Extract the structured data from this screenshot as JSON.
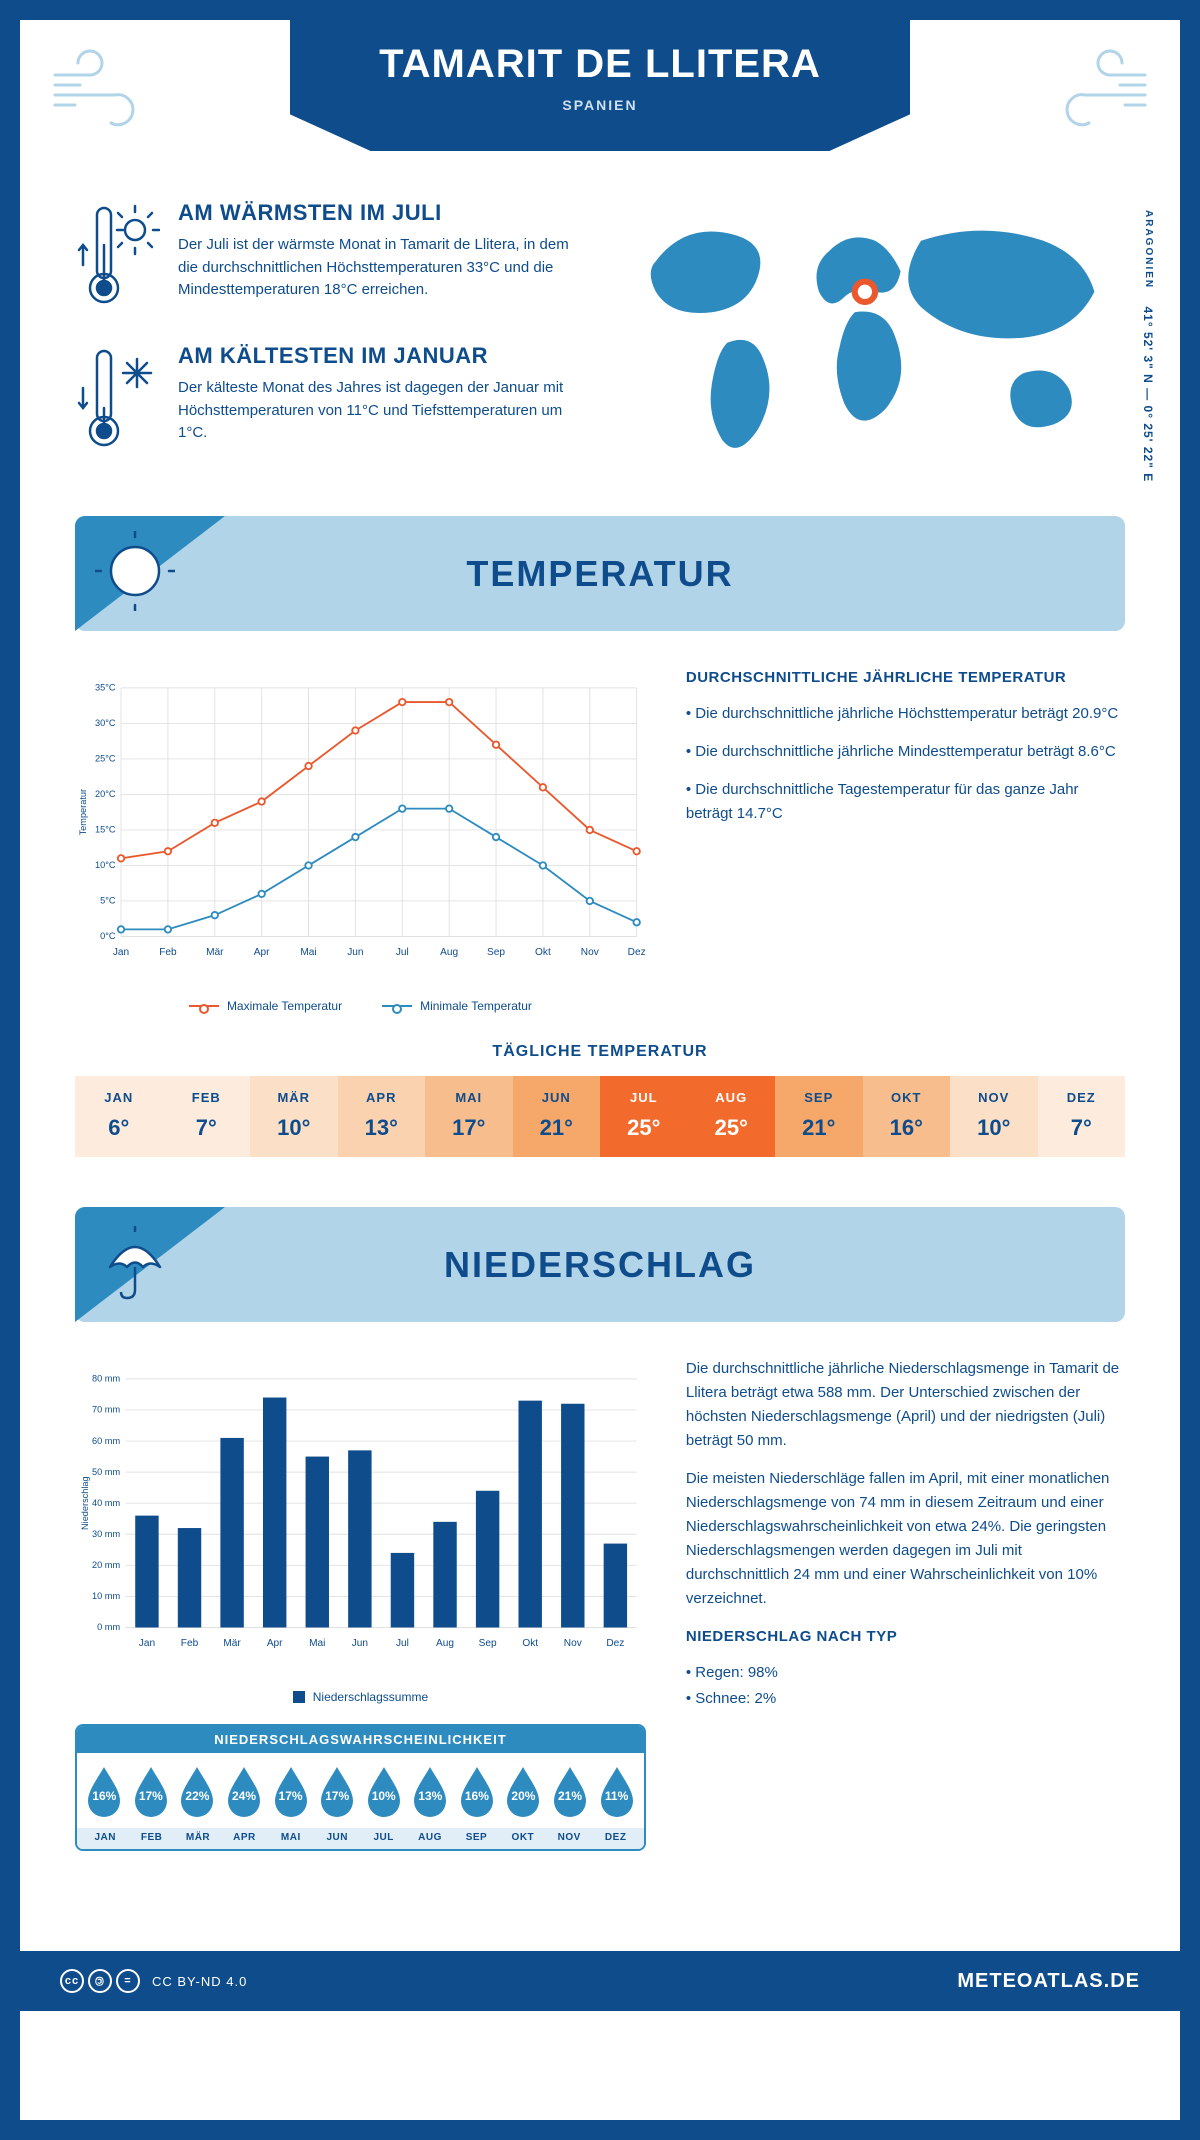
{
  "header": {
    "title": "TAMARIT DE LLITERA",
    "subtitle": "SPANIEN"
  },
  "intro": {
    "warm": {
      "heading": "AM WÄRMSTEN IM JULI",
      "text": "Der Juli ist der wärmste Monat in Tamarit de Llitera, in dem die durchschnittlichen Höchsttemperaturen 33°C und die Mindesttemperaturen 18°C erreichen."
    },
    "cold": {
      "heading": "AM KÄLTESTEN IM JANUAR",
      "text": "Der kälteste Monat des Jahres ist dagegen der Januar mit Höchsttemperaturen von 11°C und Tiefsttemperaturen um 1°C."
    },
    "coords": "41° 52' 3\" N — 0° 25' 22\" E",
    "region": "ARAGONIEN"
  },
  "temperature": {
    "section_title": "TEMPERATUR",
    "chart": {
      "type": "line",
      "months": [
        "Jan",
        "Feb",
        "Mär",
        "Apr",
        "Mai",
        "Jun",
        "Jul",
        "Aug",
        "Sep",
        "Okt",
        "Nov",
        "Dez"
      ],
      "max_series": [
        11,
        12,
        16,
        19,
        24,
        29,
        33,
        33,
        27,
        21,
        15,
        12
      ],
      "min_series": [
        1,
        1,
        3,
        6,
        10,
        14,
        18,
        18,
        14,
        10,
        5,
        2
      ],
      "ylim": [
        0,
        35
      ],
      "ytick_step": 5,
      "y_label": "Temperatur",
      "y_suffix": "°C",
      "max_color": "#e9592d",
      "min_color": "#2e8bc0",
      "grid_color": "#e0e0e0",
      "legend_max": "Maximale Temperatur",
      "legend_min": "Minimale Temperatur"
    },
    "summary": {
      "heading": "DURCHSCHNITTLICHE JÄHRLICHE TEMPERATUR",
      "points": [
        "Die durchschnittliche jährliche Höchsttemperatur beträgt 20.9°C",
        "Die durchschnittliche jährliche Mindesttemperatur beträgt 8.6°C",
        "Die durchschnittliche Tagestemperatur für das ganze Jahr beträgt 14.7°C"
      ]
    },
    "daily": {
      "title": "TÄGLICHE TEMPERATUR",
      "months": [
        "JAN",
        "FEB",
        "MÄR",
        "APR",
        "MAI",
        "JUN",
        "JUL",
        "AUG",
        "SEP",
        "OKT",
        "NOV",
        "DEZ"
      ],
      "values": [
        "6°",
        "7°",
        "10°",
        "13°",
        "17°",
        "21°",
        "25°",
        "25°",
        "21°",
        "16°",
        "10°",
        "7°"
      ],
      "colors": [
        "#fdecde",
        "#fdecde",
        "#fcdfc7",
        "#fbd2b0",
        "#f8bd8d",
        "#f5a86a",
        "#f26b2c",
        "#f26b2c",
        "#f5a86a",
        "#f8bd8d",
        "#fcdfc7",
        "#fdecde"
      ],
      "text_colors": [
        "#0e4c8c",
        "#0e4c8c",
        "#0e4c8c",
        "#0e4c8c",
        "#0e4c8c",
        "#0e4c8c",
        "#ffffff",
        "#ffffff",
        "#0e4c8c",
        "#0e4c8c",
        "#0e4c8c",
        "#0e4c8c"
      ]
    }
  },
  "precipitation": {
    "section_title": "NIEDERSCHLAG",
    "chart": {
      "type": "bar",
      "months": [
        "Jan",
        "Feb",
        "Mär",
        "Apr",
        "Mai",
        "Jun",
        "Jul",
        "Aug",
        "Sep",
        "Okt",
        "Nov",
        "Dez"
      ],
      "values": [
        36,
        32,
        61,
        74,
        55,
        57,
        24,
        34,
        44,
        73,
        72,
        27
      ],
      "ylim": [
        0,
        80
      ],
      "ytick_step": 10,
      "y_label": "Niederschlag",
      "y_suffix": " mm",
      "bar_color": "#0e4c8c",
      "grid_color": "#e0e0e0",
      "legend": "Niederschlagssumme"
    },
    "text": {
      "p1": "Die durchschnittliche jährliche Niederschlagsmenge in Tamarit de Llitera beträgt etwa 588 mm. Der Unterschied zwischen der höchsten Niederschlagsmenge (April) und der niedrigsten (Juli) beträgt 50 mm.",
      "p2": "Die meisten Niederschläge fallen im April, mit einer monatlichen Niederschlagsmenge von 74 mm in diesem Zeitraum und einer Niederschlagswahrscheinlichkeit von etwa 24%. Die geringsten Niederschlagsmengen werden dagegen im Juli mit durchschnittlich 24 mm und einer Wahrscheinlichkeit von 10% verzeichnet.",
      "type_heading": "NIEDERSCHLAG NACH TYP",
      "type_points": [
        "Regen: 98%",
        "Schnee: 2%"
      ]
    },
    "probability": {
      "heading": "NIEDERSCHLAGSWAHRSCHEINLICHKEIT",
      "months": [
        "JAN",
        "FEB",
        "MÄR",
        "APR",
        "MAI",
        "JUN",
        "JUL",
        "AUG",
        "SEP",
        "OKT",
        "NOV",
        "DEZ"
      ],
      "values": [
        "16%",
        "17%",
        "22%",
        "24%",
        "17%",
        "17%",
        "10%",
        "13%",
        "16%",
        "20%",
        "21%",
        "11%"
      ],
      "drop_color": "#2e8bc0"
    }
  },
  "footer": {
    "license": "CC BY-ND 4.0",
    "brand": "METEOATLAS.DE"
  }
}
